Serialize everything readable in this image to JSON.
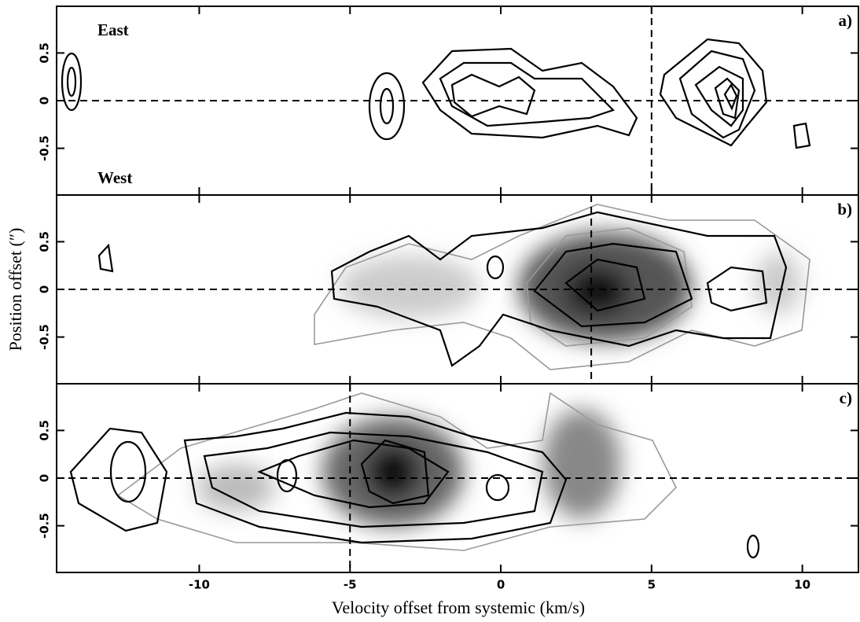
{
  "chart_data": [
    {
      "type": "contour",
      "panel_label": "a)",
      "annotations": [
        "East",
        "West"
      ],
      "xlim": [
        -14.73,
        11.86
      ],
      "ylim": [
        -0.99,
        0.99
      ],
      "yticks": [
        0.5,
        0,
        -0.5
      ],
      "hline": 0,
      "vline": 5
    },
    {
      "type": "contour",
      "panel_label": "b)",
      "ylabel": "Position offset (″)",
      "xlim": [
        -14.73,
        11.86
      ],
      "ylim": [
        -0.99,
        0.99
      ],
      "yticks": [
        0.5,
        0,
        -0.5
      ],
      "hline": 0,
      "vline": 3
    },
    {
      "type": "contour",
      "panel_label": "c)",
      "xlabel": "Velocity offset from systemic (km/s)",
      "xlim": [
        -14.73,
        11.86
      ],
      "ylim": [
        -0.99,
        0.99
      ],
      "yticks": [
        0.5,
        0,
        -0.5
      ],
      "xticks": [
        -10,
        -5,
        0,
        5,
        10
      ],
      "hline": 0,
      "vline": -5
    }
  ]
}
